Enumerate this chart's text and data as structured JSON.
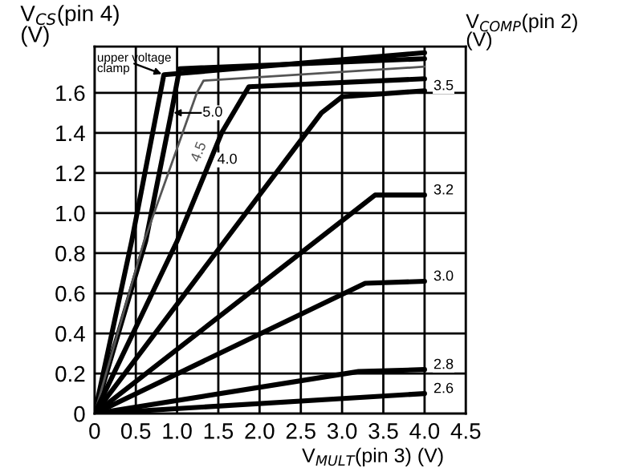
{
  "chart_data": {
    "type": "line",
    "ylabel": "V$_{CS}$(pin 4)\n(V)",
    "xlabel": "V$_{MULT}$(pin 3) (V)",
    "legend_title": "V$_{COMP}$(pin 2)\n(V)",
    "xlim": [
      0,
      4.5
    ],
    "xticks": [
      0,
      0.5,
      {
        "value": 1,
        "label": "1.0"
      },
      1.5,
      {
        "value": 2,
        "label": "2.0"
      },
      2.5,
      {
        "value": 3,
        "label": "3.0"
      },
      3.5,
      {
        "value": 4,
        "label": "4.0"
      },
      4.5
    ],
    "ylim": [
      0,
      1.83
    ],
    "yticks": [
      0,
      0.2,
      0.4,
      0.6,
      0.8,
      {
        "value": 1,
        "label": "1.0"
      },
      1.2,
      1.4,
      1.6
    ],
    "grid": true,
    "marker": "none",
    "line_style": "solid",
    "series": [
      {
        "name": "upper voltage\nclamp",
        "color": "#000000",
        "x": [
          0,
          0.45,
          0.84,
          4.0
        ],
        "values": [
          0,
          0.86,
          1.69,
          1.8
        ]
      },
      {
        "name": "5.0",
        "color": "#000000",
        "x": [
          0,
          0.62,
          0.93,
          1.03,
          4.0
        ],
        "values": [
          0,
          0.86,
          1.5,
          1.72,
          1.77
        ]
      },
      {
        "name": "4.5",
        "color": "#555555",
        "x": [
          0,
          0.6,
          1.24,
          1.32,
          4.0
        ],
        "values": [
          0,
          0.86,
          1.6,
          1.66,
          1.73
        ]
      },
      {
        "name": "4.0",
        "color": "#000000",
        "x": [
          0,
          1.0,
          1.54,
          1.87,
          4.0
        ],
        "values": [
          0,
          0.86,
          1.4,
          1.63,
          1.67
        ]
      },
      {
        "name": "3.5",
        "color": "#000000",
        "x": [
          0,
          2.75,
          3.0,
          4.0
        ],
        "values": [
          0,
          1.5,
          1.58,
          1.61
        ]
      },
      {
        "name": "3.2",
        "color": "#000000",
        "x": [
          0,
          3.4,
          4.0
        ],
        "values": [
          0,
          1.09,
          1.09
        ]
      },
      {
        "name": "3.0",
        "color": "#000000",
        "x": [
          0,
          3.28,
          4.0
        ],
        "values": [
          0,
          0.65,
          0.66
        ]
      },
      {
        "name": "2.8",
        "color": "#000000",
        "x": [
          0,
          3.2,
          4.0
        ],
        "values": [
          0,
          0.21,
          0.22
        ]
      },
      {
        "name": "2.6",
        "color": "#000000",
        "x": [
          0,
          4.0
        ],
        "values": [
          0,
          0.1
        ]
      }
    ]
  }
}
